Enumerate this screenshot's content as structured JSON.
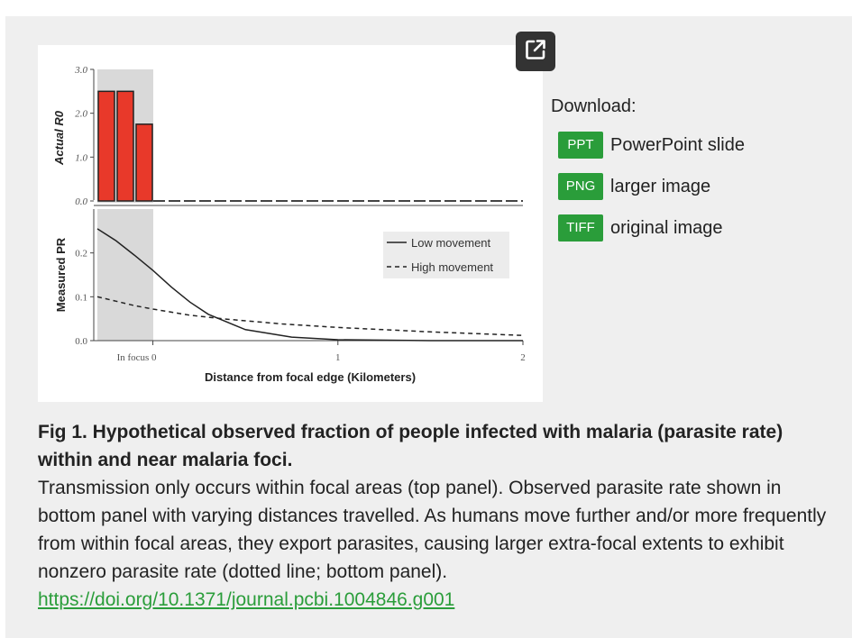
{
  "figure": {
    "expand_icon": "external-link-icon",
    "chart_data": [
      {
        "type": "bar",
        "ylabel": "Actual R0",
        "y_ticks": [
          "3.0",
          "2.0",
          "1.0",
          "0.0"
        ],
        "ylim": [
          0,
          3.0
        ],
        "values": [
          2.5,
          2.5,
          1.75
        ],
        "colors": {
          "bar": "#e8392a",
          "shade": "#d9d9d9"
        }
      },
      {
        "type": "line",
        "ylabel": "Measured PR",
        "xlabel": "Distance from focal edge (Kilometers)",
        "x_ticks": [
          "In focus 0",
          "1",
          "2"
        ],
        "y_ticks": [
          "0.2",
          "0.1",
          "0.0"
        ],
        "xlim": [
          -0.3,
          2.0
        ],
        "ylim": [
          0,
          0.3
        ],
        "series": [
          {
            "name": "Low movement",
            "style": "solid",
            "x": [
              -0.3,
              -0.2,
              -0.1,
              0.0,
              0.1,
              0.2,
              0.3,
              0.5,
              0.75,
              1.0,
              1.5,
              2.0
            ],
            "y": [
              0.255,
              0.228,
              0.195,
              0.16,
              0.122,
              0.088,
              0.06,
              0.025,
              0.008,
              0.002,
              0.0,
              0.0
            ]
          },
          {
            "name": "High movement",
            "style": "dashed",
            "x": [
              -0.3,
              -0.2,
              -0.1,
              0.0,
              0.2,
              0.4,
              0.7,
              1.0,
              1.5,
              2.0
            ],
            "y": [
              0.1,
              0.09,
              0.08,
              0.072,
              0.058,
              0.049,
              0.038,
              0.03,
              0.02,
              0.012
            ]
          }
        ]
      }
    ]
  },
  "download": {
    "title": "Download:",
    "items": [
      {
        "badge": "PPT",
        "label": "PowerPoint slide"
      },
      {
        "badge": "PNG",
        "label": "larger image"
      },
      {
        "badge": "TIFF",
        "label": "original image"
      }
    ]
  },
  "caption": {
    "title": "Fig 1. Hypothetical observed fraction of people infected with malaria (parasite rate) within and near malaria foci.",
    "body": "Transmission only occurs within focal areas (top panel). Observed parasite rate shown in bottom panel with varying distances travelled. As humans move further and/or more frequently from within focal areas, they export parasites, causing larger extra-focal extents to exhibit nonzero parasite rate (dotted line; bottom panel).",
    "link": "https://doi.org/10.1371/journal.pcbi.1004846.g001"
  }
}
